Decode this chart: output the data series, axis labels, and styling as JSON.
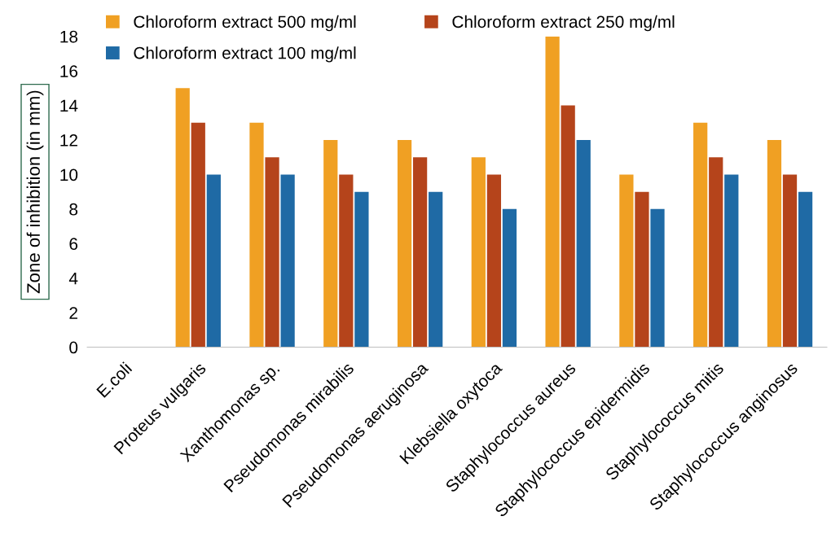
{
  "chart_data": {
    "type": "bar",
    "ylabel": "Zone of inhibition (in mm)",
    "categories": [
      "E.coli",
      "Proteus vulgaris",
      "Xanthomonas sp.",
      "Pseudomonas mirabilis",
      "Pseudomonas aeruginosa",
      "Klebsiella oxytoca",
      "Staphylococcus aureus",
      "Staphylococcus epidermidis",
      "Staphylococcus mitis",
      "Staphylococcus anginosus"
    ],
    "series": [
      {
        "name": "Chloroform extract 500 mg/ml",
        "color": "#f0a023",
        "values": [
          0,
          15,
          13,
          12,
          12,
          11,
          18,
          10,
          13,
          12
        ]
      },
      {
        "name": "Chloroform extract 250 mg/ml",
        "color": "#b5441b",
        "values": [
          0,
          13,
          11,
          10,
          11,
          10,
          14,
          9,
          11,
          10
        ]
      },
      {
        "name": "Chloroform extract 100 mg/ml",
        "color": "#1f6aa5",
        "values": [
          0,
          10,
          10,
          9,
          9,
          8,
          12,
          8,
          10,
          9
        ]
      }
    ],
    "ylim": [
      0,
      18
    ],
    "yticks": [
      0,
      2,
      4,
      6,
      8,
      10,
      12,
      14,
      16,
      18
    ],
    "grid": false,
    "legend": "top"
  }
}
